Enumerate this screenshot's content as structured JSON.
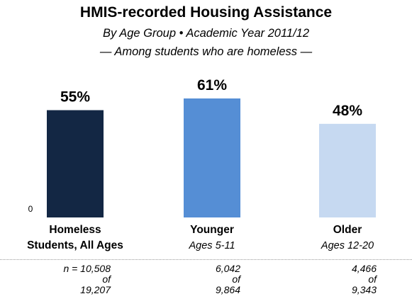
{
  "title": "HMIS-recorded Housing Assistance",
  "subtitle_line1": "By Age Group • Academic Year 2011/12",
  "subtitle_line2": "— Among students who are homeless —",
  "zero_label": "0",
  "colors": {
    "bar1": "#132744",
    "bar2": "#558ed5",
    "bar3": "#c6d9f1"
  },
  "chart_data": {
    "type": "bar",
    "categories": [
      "Homeless Students, All Ages",
      "Younger",
      "Older"
    ],
    "category_line1": [
      "Homeless",
      "Younger",
      "Older"
    ],
    "category_line2": [
      "Students, All Ages",
      "Ages 5-11",
      "Ages 12-20"
    ],
    "values": [
      55,
      61,
      48
    ],
    "data_labels": [
      "55%",
      "61%",
      "48%"
    ],
    "ylim": [
      0,
      61
    ],
    "title": "HMIS-recorded Housing Assistance",
    "xlabel": "",
    "ylabel": ""
  },
  "counts": [
    {
      "n": "n = 10,508",
      "of": "of",
      "total": "19,207"
    },
    {
      "n": "6,042",
      "of": "of",
      "total": "9,864"
    },
    {
      "n": "4,466",
      "of": "of",
      "total": "9,343"
    }
  ]
}
